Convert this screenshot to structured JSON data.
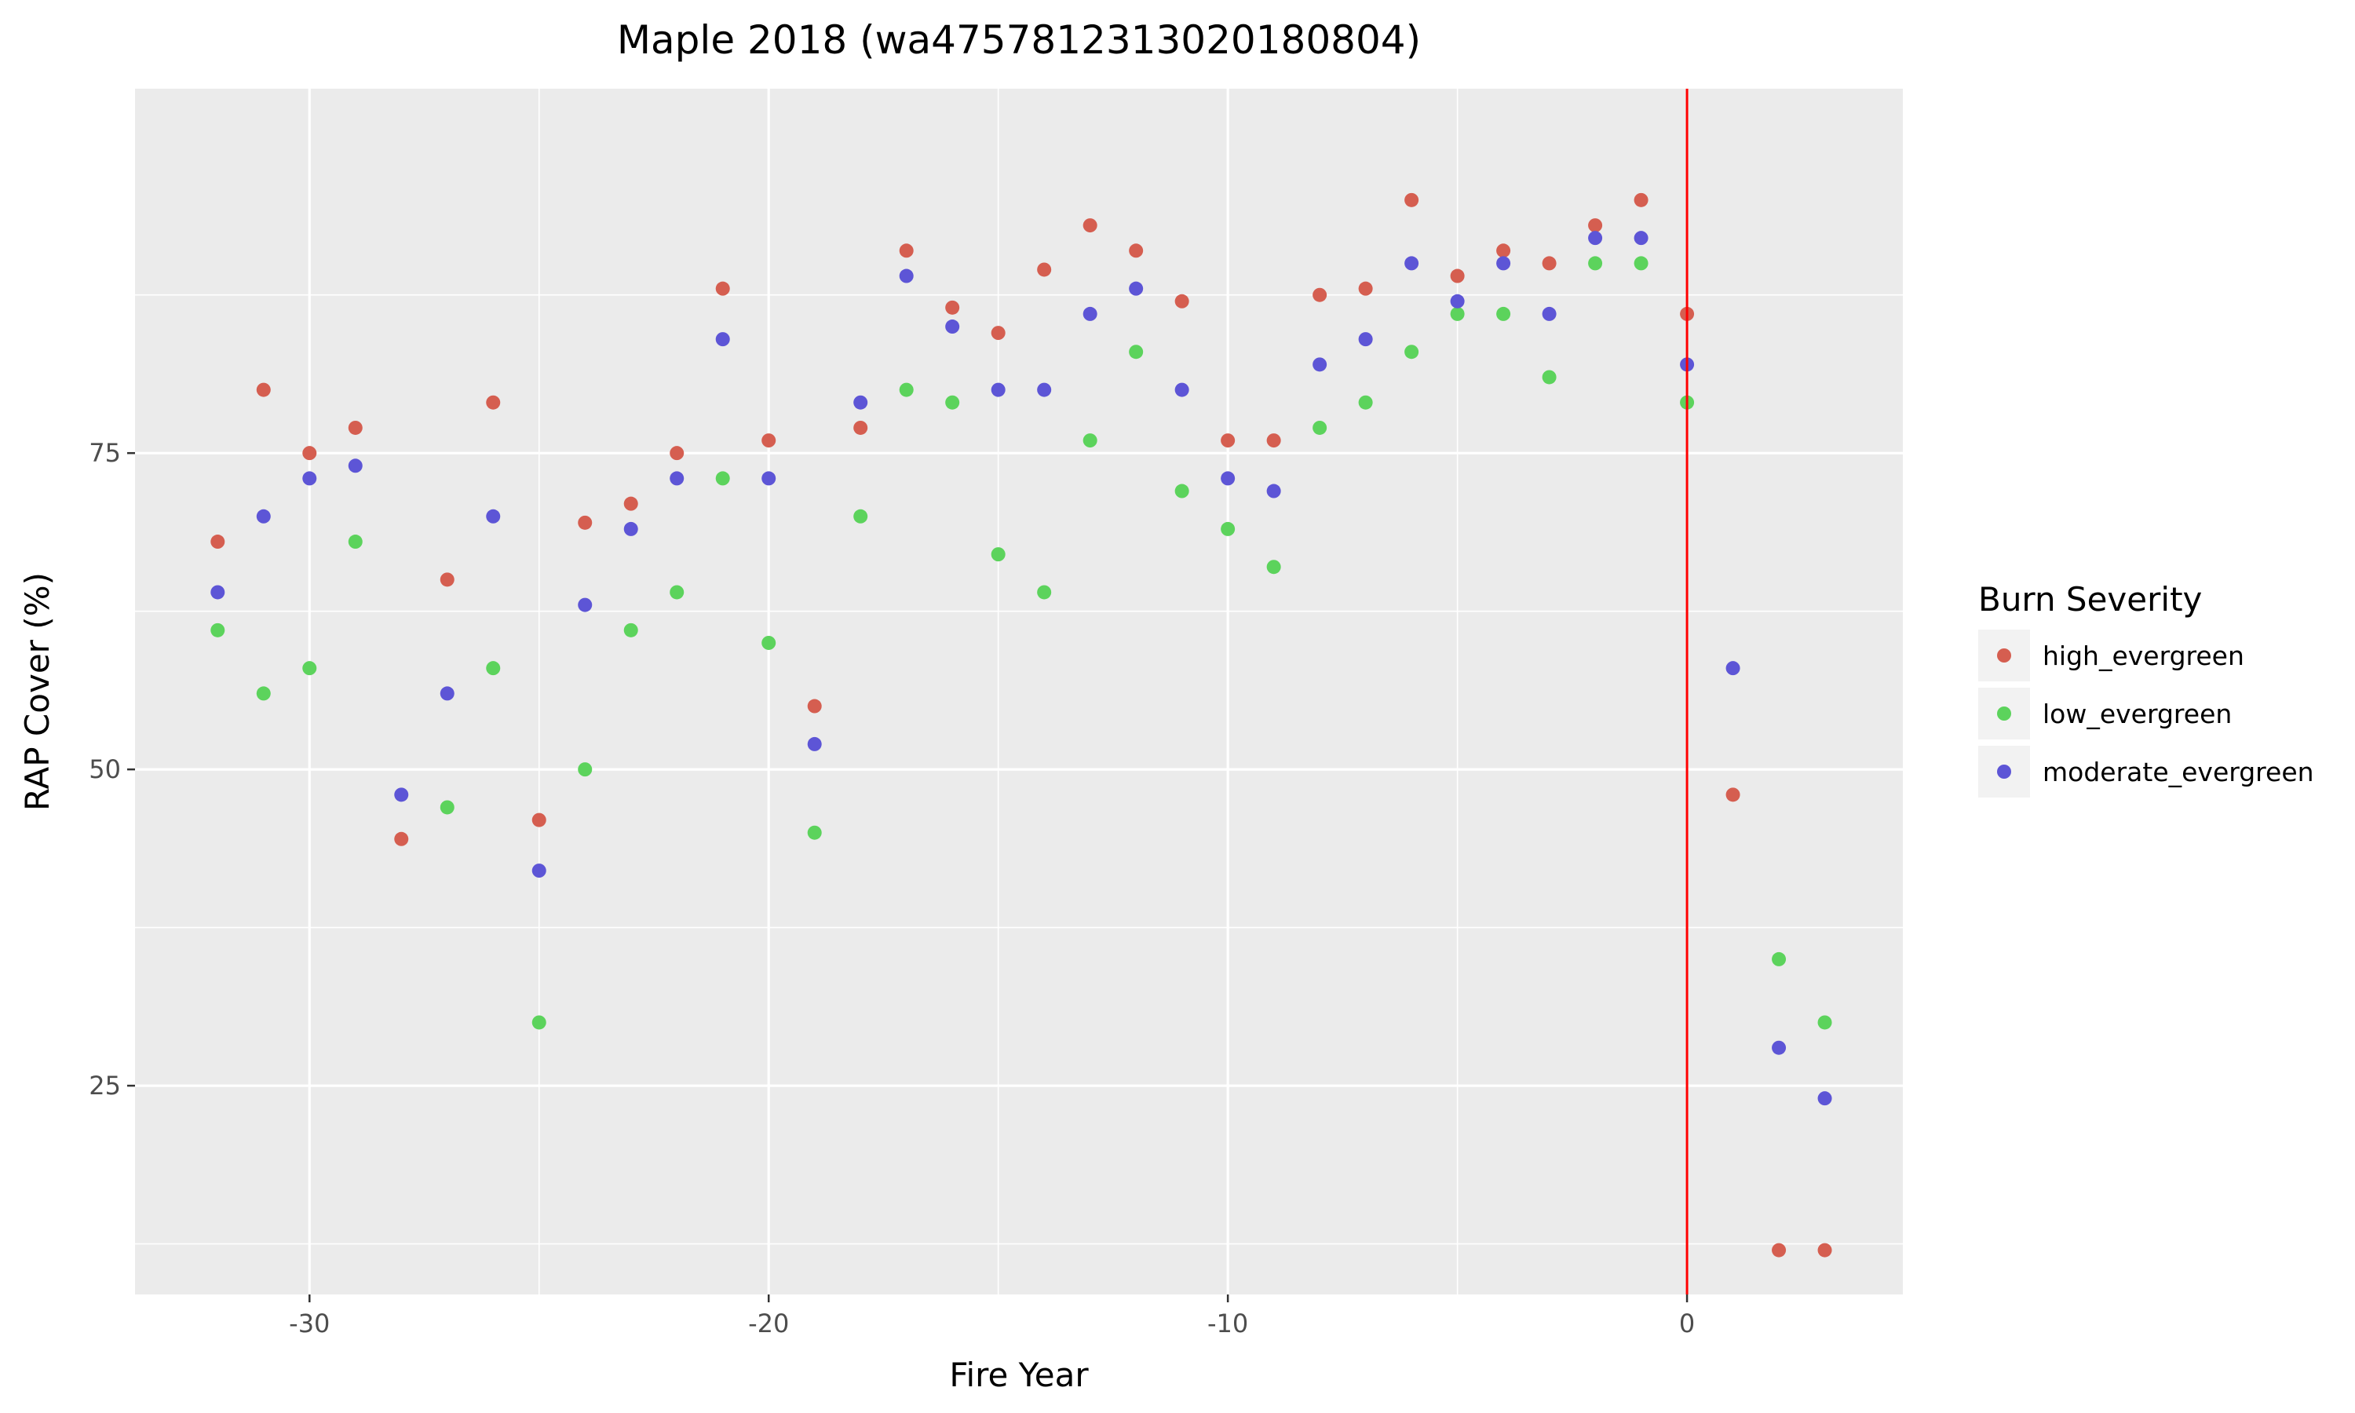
{
  "chart_data": {
    "type": "scatter",
    "title": "Maple 2018 (wa4757812313020180804)",
    "xlabel": "Fire Year",
    "ylabel": "RAP Cover (%)",
    "xlim": [
      -33.8,
      4.7
    ],
    "ylim": [
      8.5,
      103.8
    ],
    "x_ticks": [
      -30,
      -20,
      -10,
      0
    ],
    "y_ticks": [
      25,
      50,
      75
    ],
    "grid": true,
    "legend_title": "Burn Severity",
    "legend_position": "right",
    "vline_x": 0,
    "vline_color": "#ff0000",
    "series": [
      {
        "name": "high_evergreen",
        "color": "#d55e50",
        "points": [
          [
            -32,
            68
          ],
          [
            -31,
            80
          ],
          [
            -30,
            75
          ],
          [
            -29,
            77
          ],
          [
            -28,
            44.5
          ],
          [
            -27,
            65
          ],
          [
            -26,
            79
          ],
          [
            -25,
            46
          ],
          [
            -24,
            69.5
          ],
          [
            -23,
            71
          ],
          [
            -22,
            75
          ],
          [
            -21,
            88
          ],
          [
            -20,
            76
          ],
          [
            -19,
            55
          ],
          [
            -18,
            77
          ],
          [
            -17,
            91
          ],
          [
            -16,
            86.5
          ],
          [
            -15,
            84.5
          ],
          [
            -14,
            89.5
          ],
          [
            -13,
            93
          ],
          [
            -12,
            91
          ],
          [
            -11,
            87
          ],
          [
            -10,
            76
          ],
          [
            -9,
            76
          ],
          [
            -8,
            87.5
          ],
          [
            -7,
            88
          ],
          [
            -6,
            95
          ],
          [
            -5,
            89
          ],
          [
            -4,
            91
          ],
          [
            -3,
            90
          ],
          [
            -2,
            93
          ],
          [
            -1,
            95
          ],
          [
            0,
            86
          ],
          [
            1,
            48
          ],
          [
            2,
            12
          ],
          [
            3,
            12
          ]
        ]
      },
      {
        "name": "low_evergreen",
        "color": "#5cd35c",
        "points": [
          [
            -32,
            61
          ],
          [
            -31,
            56
          ],
          [
            -30,
            58
          ],
          [
            -29,
            68
          ],
          [
            -27,
            47
          ],
          [
            -26,
            58
          ],
          [
            -25,
            30
          ],
          [
            -24,
            50
          ],
          [
            -23,
            61
          ],
          [
            -22,
            64
          ],
          [
            -21,
            73
          ],
          [
            -20,
            60
          ],
          [
            -19,
            45
          ],
          [
            -18,
            70
          ],
          [
            -17,
            80
          ],
          [
            -16,
            79
          ],
          [
            -15,
            67
          ],
          [
            -14,
            64
          ],
          [
            -13,
            76
          ],
          [
            -12,
            83
          ],
          [
            -11,
            72
          ],
          [
            -10,
            69
          ],
          [
            -9,
            66
          ],
          [
            -8,
            77
          ],
          [
            -7,
            79
          ],
          [
            -6,
            83
          ],
          [
            -5,
            86
          ],
          [
            -4,
            86
          ],
          [
            -3,
            81
          ],
          [
            -2,
            90
          ],
          [
            -1,
            90
          ],
          [
            0,
            79
          ],
          [
            2,
            35
          ],
          [
            3,
            30
          ]
        ]
      },
      {
        "name": "moderate_evergreen",
        "color": "#5d55d6",
        "points": [
          [
            -32,
            64
          ],
          [
            -31,
            70
          ],
          [
            -30,
            73
          ],
          [
            -29,
            74
          ],
          [
            -28,
            48
          ],
          [
            -27,
            56
          ],
          [
            -26,
            70
          ],
          [
            -25,
            42
          ],
          [
            -24,
            63
          ],
          [
            -23,
            69
          ],
          [
            -22,
            73
          ],
          [
            -21,
            84
          ],
          [
            -20,
            73
          ],
          [
            -19,
            52
          ],
          [
            -18,
            79
          ],
          [
            -17,
            89
          ],
          [
            -16,
            85
          ],
          [
            -15,
            80
          ],
          [
            -14,
            80
          ],
          [
            -13,
            86
          ],
          [
            -12,
            88
          ],
          [
            -11,
            80
          ],
          [
            -10,
            73
          ],
          [
            -9,
            72
          ],
          [
            -8,
            82
          ],
          [
            -7,
            84
          ],
          [
            -6,
            90
          ],
          [
            -5,
            87
          ],
          [
            -4,
            90
          ],
          [
            -3,
            86
          ],
          [
            -2,
            92
          ],
          [
            -1,
            92
          ],
          [
            0,
            82
          ],
          [
            1,
            58
          ],
          [
            2,
            28
          ],
          [
            3,
            24
          ]
        ]
      }
    ]
  }
}
